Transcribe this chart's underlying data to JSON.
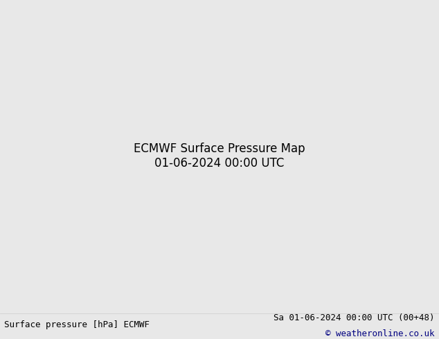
{
  "title_left": "Surface pressure [hPa] ECMWF",
  "title_right": "Sa 01-06-2024 00:00 UTC (00+48)",
  "copyright": "© weatheronline.co.uk",
  "background_color": "#e8e8e8",
  "land_color": "#c8e6c8",
  "ocean_color": "#e8e8e8",
  "contour_color_black": "#000000",
  "contour_color_blue": "#0000cc",
  "contour_color_red": "#cc0000",
  "label_fontsize": 7,
  "footer_fontsize": 9,
  "fig_width": 6.34,
  "fig_height": 4.9
}
